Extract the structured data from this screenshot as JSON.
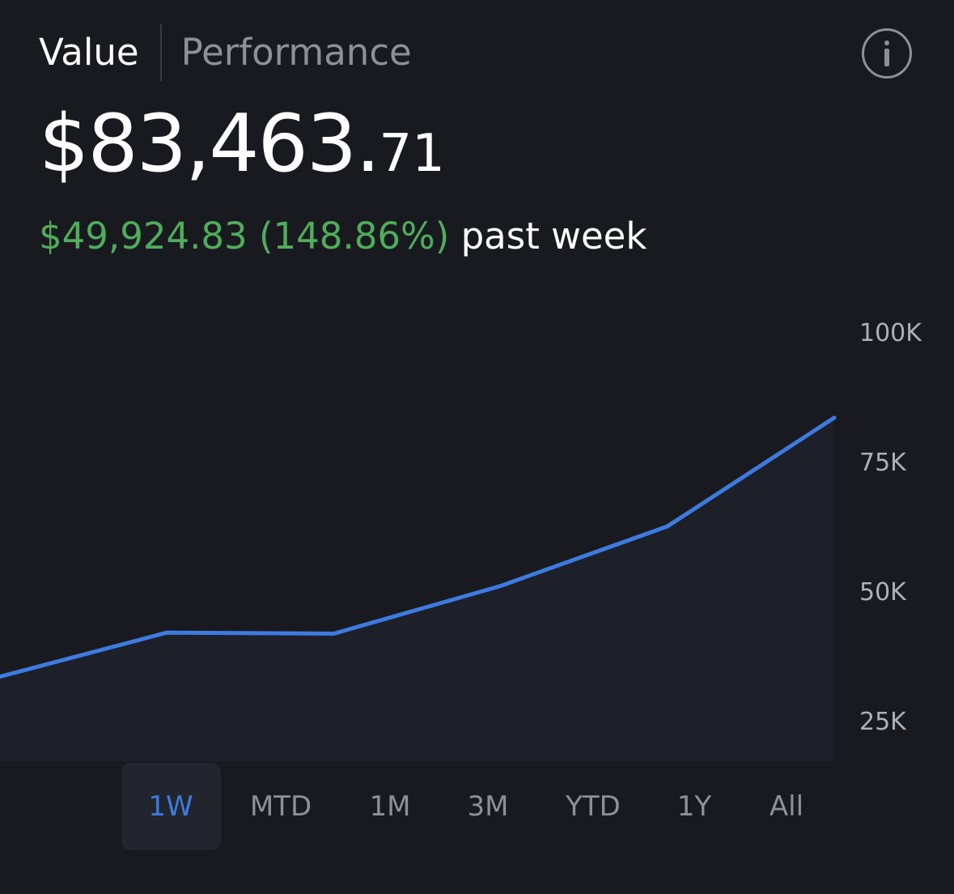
{
  "tabs": [
    {
      "label": "Value",
      "active": true
    },
    {
      "label": "Performance",
      "active": false
    }
  ],
  "info_button": {
    "icon": "info-icon"
  },
  "portfolio": {
    "value_main": "$83,463.",
    "value_cents": "71",
    "change_amount": "$49,924.83 (148.86%)",
    "change_period": "past week"
  },
  "chart_data": {
    "type": "area",
    "x": [
      0,
      1,
      2,
      3,
      4,
      5
    ],
    "values": [
      33500,
      42000,
      41800,
      51000,
      62500,
      83463.71
    ],
    "ylim": [
      25000,
      100000
    ],
    "y_ticks": [
      {
        "value": 100000,
        "label": "100K"
      },
      {
        "value": 75000,
        "label": "75K"
      },
      {
        "value": 50000,
        "label": "50K"
      },
      {
        "value": 25000,
        "label": "25K"
      }
    ],
    "grid": false,
    "line_color": "#3d7be0",
    "fill_color": "#1d2029"
  },
  "ranges": [
    {
      "label": "1W",
      "selected": true
    },
    {
      "label": "MTD",
      "selected": false
    },
    {
      "label": "1M",
      "selected": false
    },
    {
      "label": "3M",
      "selected": false
    },
    {
      "label": "YTD",
      "selected": false
    },
    {
      "label": "1Y",
      "selected": false
    },
    {
      "label": "All",
      "selected": false
    }
  ],
  "colors": {
    "background": "#191a1f",
    "positive": "#4fad5b",
    "accent": "#3d7be0",
    "muted_text": "#8e9098"
  }
}
